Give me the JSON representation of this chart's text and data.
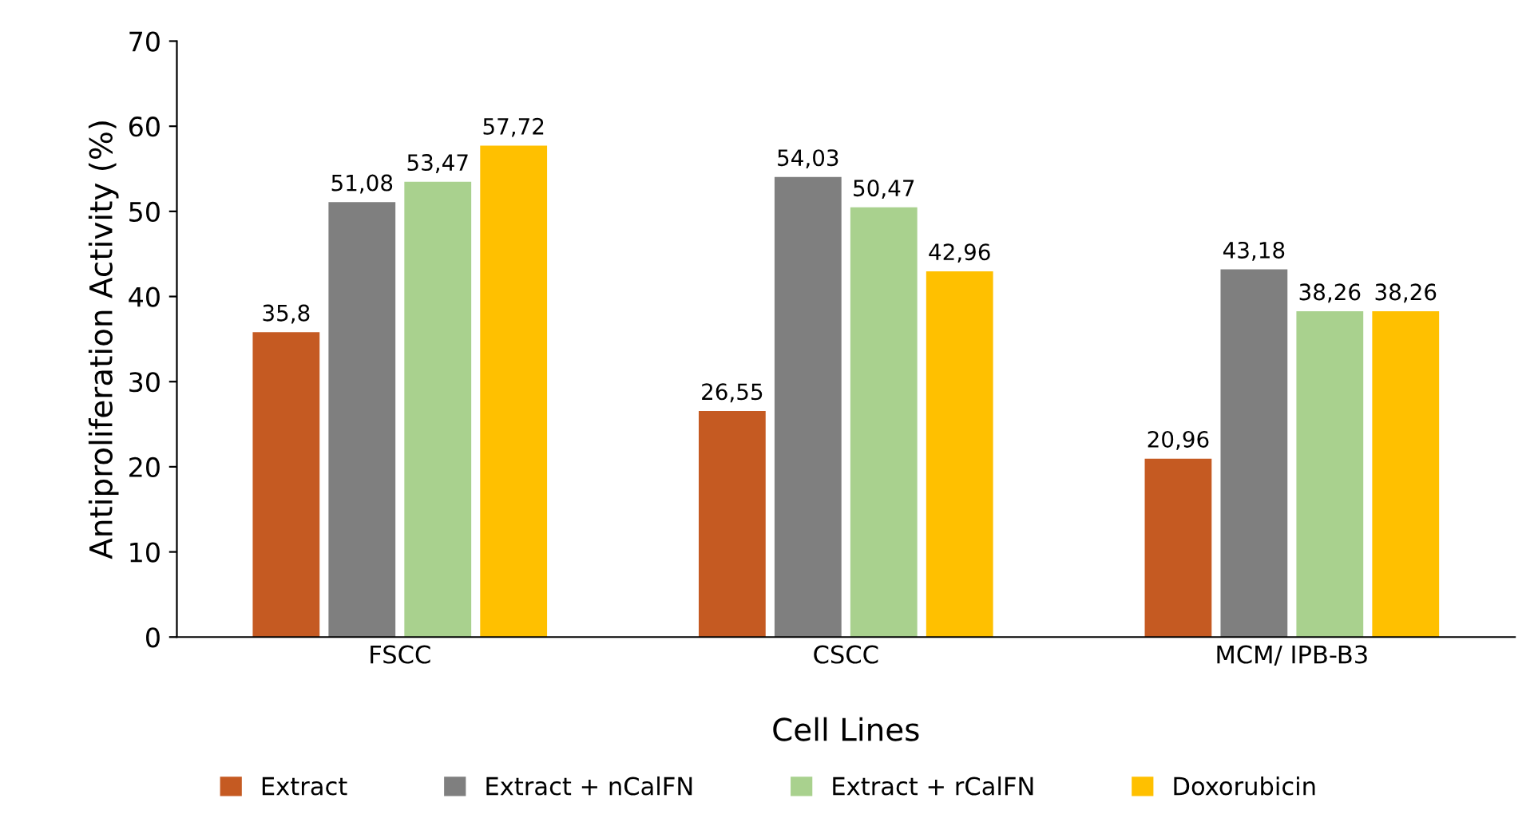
{
  "chart_data": {
    "type": "bar",
    "xlabel": "Cell Lines",
    "ylabel": "Antiproliferation Activity (%)",
    "categories": [
      "FSCC",
      "CSCC",
      "MCM/ IPB-B3"
    ],
    "series": [
      {
        "name": "Extract",
        "color": "#c55a22",
        "values": [
          35.8,
          26.55,
          20.96
        ],
        "value_labels": [
          "35,8",
          "26,55",
          "20,96"
        ]
      },
      {
        "name": "Extract + nCalFN",
        "color": "#7f7f7f",
        "values": [
          51.08,
          54.03,
          43.18
        ],
        "value_labels": [
          "51,08",
          "54,03",
          "43,18"
        ]
      },
      {
        "name": "Extract + rCalFN",
        "color": "#a9d18e",
        "values": [
          53.47,
          50.47,
          38.26
        ],
        "value_labels": [
          "53,47",
          "50,47",
          "38,26"
        ]
      },
      {
        "name": "Doxorubicin",
        "color": "#ffc000",
        "values": [
          57.72,
          42.96,
          38.26
        ],
        "value_labels": [
          "57,72",
          "42,96",
          "38,26"
        ]
      }
    ],
    "ylim": [
      0,
      70
    ],
    "yticks": [
      0,
      10,
      20,
      30,
      40,
      50,
      60,
      70
    ],
    "grid": false,
    "legend": "bottom"
  }
}
